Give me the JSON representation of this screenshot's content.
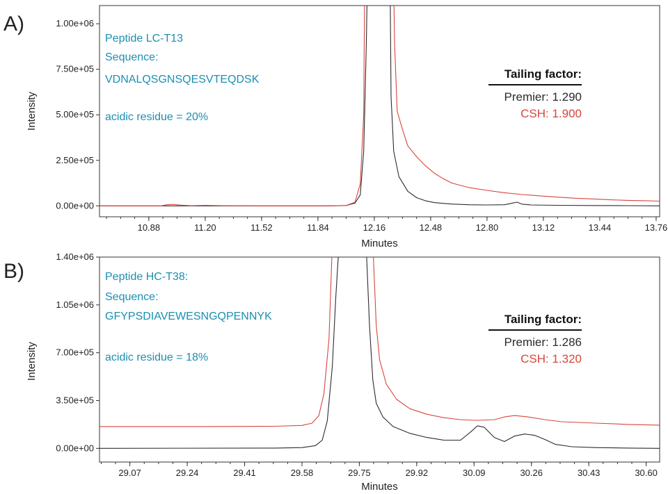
{
  "chart_data": [
    {
      "panel_label": "A)",
      "type": "line",
      "xlabel": "Minutes",
      "ylabel": "Intensity",
      "xlim": [
        10.6,
        13.78
      ],
      "ylim": [
        -60000,
        1100000
      ],
      "x_ticks": [
        "10.88",
        "11.20",
        "11.52",
        "11.84",
        "12.16",
        "12.48",
        "12.80",
        "13.12",
        "13.44",
        "13.76"
      ],
      "y_ticks": [
        "0.00e+00",
        "2.50e+05",
        "5.00e+05",
        "7.50e+05",
        "1.00e+06"
      ],
      "annotation": {
        "lines": [
          "Peptide LC-T13",
          "Sequence:",
          "VDNALQSGNSQESVTEQDSK",
          "acidic residue = 20%"
        ]
      },
      "tailing": {
        "title": "Tailing factor:",
        "premier_label": "Premier: 1.290",
        "csh_label": "CSH: 1.900"
      },
      "colors": {
        "premier": "#2b2b2b",
        "csh": "#d6453d",
        "annotation": "#1b8fb0"
      },
      "series": [
        {
          "name": "Premier",
          "points": [
            [
              10.6,
              0
            ],
            [
              11.9,
              0
            ],
            [
              12.0,
              2000
            ],
            [
              12.05,
              15000
            ],
            [
              12.08,
              60000
            ],
            [
              12.1,
              300000
            ],
            [
              12.115,
              900000
            ],
            [
              12.12,
              1200000
            ],
            [
              12.25,
              1200000
            ],
            [
              12.255,
              600000
            ],
            [
              12.27,
              300000
            ],
            [
              12.3,
              160000
            ],
            [
              12.35,
              80000
            ],
            [
              12.4,
              45000
            ],
            [
              12.45,
              28000
            ],
            [
              12.5,
              18000
            ],
            [
              12.6,
              10000
            ],
            [
              12.7,
              6000
            ],
            [
              12.8,
              5000
            ],
            [
              12.9,
              6000
            ],
            [
              12.94,
              14000
            ],
            [
              12.97,
              20000
            ],
            [
              13.0,
              9000
            ],
            [
              13.05,
              5000
            ],
            [
              13.2,
              3000
            ],
            [
              13.4,
              2000
            ],
            [
              13.6,
              1000
            ],
            [
              13.78,
              0
            ]
          ]
        },
        {
          "name": "CSH",
          "points": [
            [
              10.6,
              0
            ],
            [
              10.95,
              0
            ],
            [
              10.98,
              6000
            ],
            [
              11.02,
              8000
            ],
            [
              11.06,
              4000
            ],
            [
              11.12,
              1000
            ],
            [
              11.2,
              3000
            ],
            [
              11.3,
              1000
            ],
            [
              11.5,
              0
            ],
            [
              11.9,
              0
            ],
            [
              12.0,
              2000
            ],
            [
              12.05,
              20000
            ],
            [
              12.08,
              120000
            ],
            [
              12.1,
              500000
            ],
            [
              12.105,
              1200000
            ],
            [
              12.27,
              1200000
            ],
            [
              12.275,
              900000
            ],
            [
              12.29,
              520000
            ],
            [
              12.32,
              420000
            ],
            [
              12.35,
              330000
            ],
            [
              12.4,
              270000
            ],
            [
              12.45,
              220000
            ],
            [
              12.5,
              180000
            ],
            [
              12.55,
              150000
            ],
            [
              12.6,
              125000
            ],
            [
              12.7,
              100000
            ],
            [
              12.8,
              85000
            ],
            [
              12.9,
              72000
            ],
            [
              13.0,
              62000
            ],
            [
              13.1,
              55000
            ],
            [
              13.2,
              48000
            ],
            [
              13.3,
              42000
            ],
            [
              13.4,
              38000
            ],
            [
              13.5,
              33000
            ],
            [
              13.6,
              30000
            ],
            [
              13.7,
              28000
            ],
            [
              13.78,
              26000
            ]
          ]
        }
      ]
    },
    {
      "panel_label": "B)",
      "type": "line",
      "xlabel": "Minutes",
      "ylabel": "Intensity",
      "xlim": [
        28.98,
        30.64
      ],
      "ylim": [
        -100000,
        1400000
      ],
      "x_ticks": [
        "29.07",
        "29.24",
        "29.41",
        "29.58",
        "29.75",
        "29.92",
        "30.09",
        "30.26",
        "30.43",
        "30.60"
      ],
      "y_ticks": [
        "0.00e+00",
        "3.50e+05",
        "7.00e+05",
        "1.05e+06",
        "1.40e+06"
      ],
      "annotation": {
        "lines": [
          "Peptide HC-T38:",
          "Sequence:",
          "GFYPSDIAVEWESNGQPENNYK",
          "acidic residue = 18%"
        ]
      },
      "tailing": {
        "title": "Tailing factor:",
        "premier_label": "Premier: 1.286",
        "csh_label": "CSH: 1.320"
      },
      "colors": {
        "premier": "#2b2b2b",
        "csh": "#d6453d",
        "annotation": "#1b8fb0"
      },
      "series": [
        {
          "name": "Premier",
          "points": [
            [
              28.98,
              0
            ],
            [
              29.5,
              2000
            ],
            [
              29.58,
              6000
            ],
            [
              29.62,
              20000
            ],
            [
              29.64,
              60000
            ],
            [
              29.655,
              200000
            ],
            [
              29.67,
              600000
            ],
            [
              29.68,
              1100000
            ],
            [
              29.69,
              1500000
            ],
            [
              29.77,
              1500000
            ],
            [
              29.78,
              900000
            ],
            [
              29.79,
              500000
            ],
            [
              29.8,
              330000
            ],
            [
              29.82,
              230000
            ],
            [
              29.85,
              160000
            ],
            [
              29.9,
              110000
            ],
            [
              29.95,
              80000
            ],
            [
              30.0,
              60000
            ],
            [
              30.05,
              60000
            ],
            [
              30.08,
              120000
            ],
            [
              30.1,
              165000
            ],
            [
              30.12,
              155000
            ],
            [
              30.15,
              80000
            ],
            [
              30.18,
              50000
            ],
            [
              30.21,
              90000
            ],
            [
              30.24,
              105000
            ],
            [
              30.27,
              95000
            ],
            [
              30.3,
              65000
            ],
            [
              30.33,
              30000
            ],
            [
              30.38,
              12000
            ],
            [
              30.45,
              6000
            ],
            [
              30.55,
              2000
            ],
            [
              30.64,
              0
            ]
          ]
        },
        {
          "name": "CSH",
          "points": [
            [
              28.98,
              160000
            ],
            [
              29.3,
              160000
            ],
            [
              29.5,
              162000
            ],
            [
              29.58,
              168000
            ],
            [
              29.61,
              185000
            ],
            [
              29.63,
              240000
            ],
            [
              29.645,
              400000
            ],
            [
              29.66,
              800000
            ],
            [
              29.67,
              1500000
            ],
            [
              29.79,
              1500000
            ],
            [
              29.8,
              900000
            ],
            [
              29.81,
              650000
            ],
            [
              29.83,
              470000
            ],
            [
              29.86,
              360000
            ],
            [
              29.9,
              290000
            ],
            [
              29.95,
              250000
            ],
            [
              30.0,
              225000
            ],
            [
              30.05,
              210000
            ],
            [
              30.1,
              205000
            ],
            [
              30.15,
              210000
            ],
            [
              30.18,
              230000
            ],
            [
              30.21,
              240000
            ],
            [
              30.25,
              230000
            ],
            [
              30.3,
              210000
            ],
            [
              30.35,
              195000
            ],
            [
              30.45,
              185000
            ],
            [
              30.55,
              175000
            ],
            [
              30.64,
              170000
            ]
          ]
        }
      ]
    }
  ]
}
